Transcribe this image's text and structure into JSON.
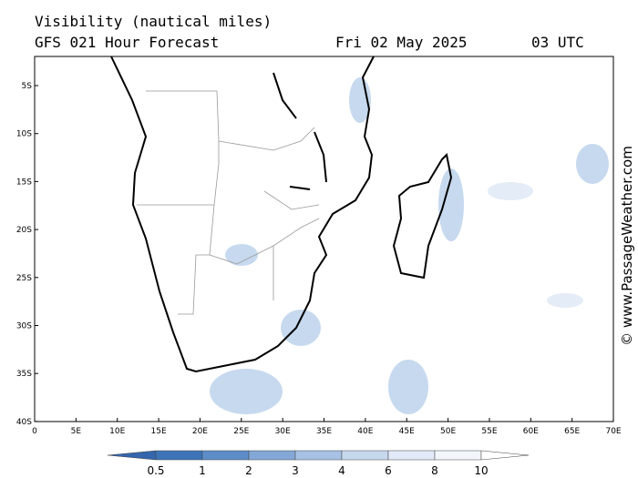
{
  "header": {
    "title": "Visibility (nautical miles)",
    "subtitle": "GFS 021 Hour Forecast",
    "date": "Fri 02 May 2025",
    "time": "03 UTC"
  },
  "map": {
    "lat_labels": [
      "5S",
      "10S",
      "15S",
      "20S",
      "25S",
      "30S",
      "35S",
      "40S"
    ],
    "lon_labels": [
      "0",
      "5E",
      "10E",
      "15E",
      "20E",
      "25E",
      "30E",
      "35E",
      "40E",
      "45E",
      "50E",
      "55E",
      "60E",
      "65E",
      "70E"
    ]
  },
  "colorbar": {
    "labels": [
      "0.5",
      "1",
      "2",
      "3",
      "4",
      "6",
      "8",
      "10"
    ]
  },
  "watermark": "© www.PassageWeather.com"
}
